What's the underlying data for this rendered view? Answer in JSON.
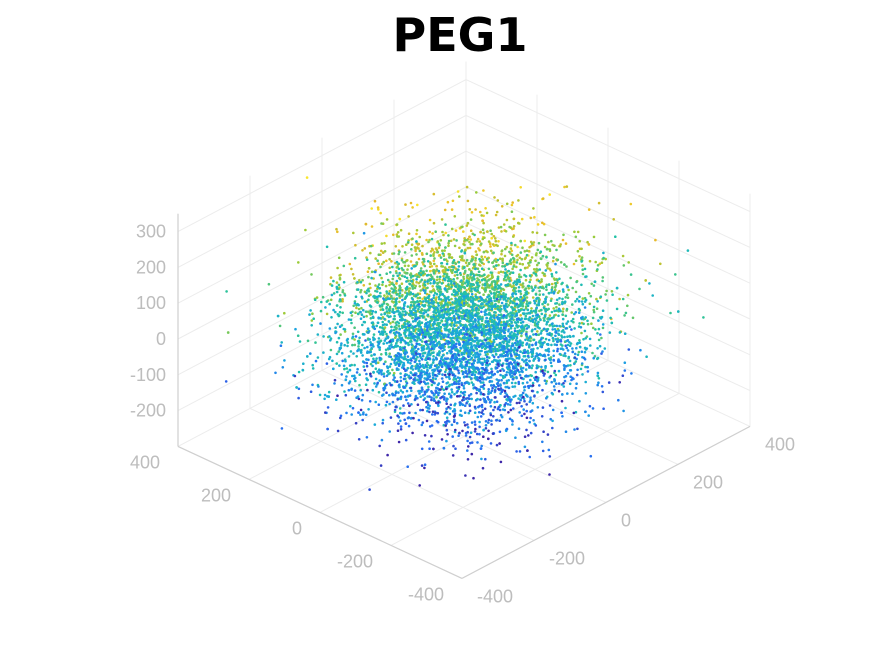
{
  "chart_data": {
    "type": "scatter",
    "title": "PEG1",
    "projection": "3d",
    "grid": true,
    "colormap": "parula",
    "color_by": "z",
    "colormap_stops": [
      "#3e26a8",
      "#2a6cf2",
      "#1ba8df",
      "#22c2a6",
      "#9bcc3a",
      "#e6b92c",
      "#f9e62d"
    ],
    "xlabel": "",
    "ylabel": "",
    "zlabel": "",
    "xlim": [
      -400,
      400
    ],
    "ylim": [
      -400,
      400
    ],
    "zlim": [
      -300,
      350
    ],
    "x_ticks": [
      "-400",
      "-200",
      "0",
      "200",
      "400"
    ],
    "y_ticks": [
      "-400",
      "-200",
      "0",
      "200",
      "400"
    ],
    "z_ticks": [
      "-200",
      "-100",
      "0",
      "100",
      "200",
      "300"
    ],
    "x_tick_values": [
      -400,
      -200,
      0,
      200,
      400
    ],
    "y_tick_values": [
      -400,
      -200,
      0,
      200,
      400
    ],
    "z_tick_values": [
      -200,
      -100,
      0,
      100,
      200,
      300
    ],
    "cloud": {
      "point_count": 6000,
      "center": [
        0,
        0,
        0
      ],
      "spread_xy": 120,
      "spread_z": 100
    }
  }
}
